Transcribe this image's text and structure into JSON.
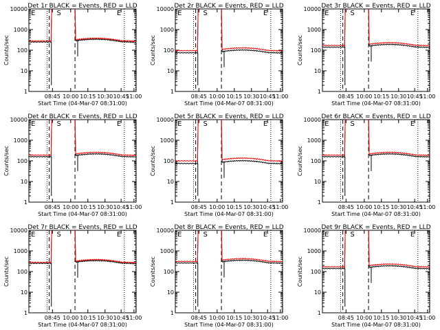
{
  "chart_data": {
    "type": "line",
    "y_scale": "log",
    "ylim": [
      1,
      10000
    ],
    "y_ticks": [
      1,
      10,
      100,
      1000,
      10000
    ],
    "y_tick_labels": [
      "1",
      "10",
      "100",
      "1000",
      "10000"
    ],
    "ylabel": "Counts/sec",
    "xlabel": "Start Time (04-Mar-07 08:31:00)",
    "x_ticks": [
      "08:45",
      "10:00",
      "10:15",
      "10:30",
      "10:45",
      "11:00"
    ],
    "annotations": [
      "E",
      "S",
      "E"
    ],
    "legend_note": "BLACK = Events, RED = LLD",
    "series_colors": {
      "events": "#000000",
      "lld": "#ff0000"
    },
    "panels": [
      {
        "title": "Det 1r BLACK = Events, RED = LLD",
        "events_base": 250,
        "lld_base": 280
      },
      {
        "title": "Det 2r BLACK = Events, RED = LLD",
        "events_base": 75,
        "lld_base": 95
      },
      {
        "title": "Det 3r BLACK = Events, RED = LLD",
        "events_base": 140,
        "lld_base": 170
      },
      {
        "title": "Det 4r BLACK = Events, RED = LLD",
        "events_base": 160,
        "lld_base": 190
      },
      {
        "title": "Det 5r BLACK = Events, RED = LLD",
        "events_base": 75,
        "lld_base": 100
      },
      {
        "title": "Det 6r BLACK = Events, RED = LLD",
        "events_base": 160,
        "lld_base": 190
      },
      {
        "title": "Det 7r BLACK = Events, RED = LLD",
        "events_base": 250,
        "lld_base": 280
      },
      {
        "title": "Det 8r BLACK = Events, RED = LLD",
        "events_base": 260,
        "lld_base": 310
      },
      {
        "title": "Det 9r BLACK = Events, RED = LLD",
        "events_base": 140,
        "lld_base": 170
      }
    ]
  }
}
